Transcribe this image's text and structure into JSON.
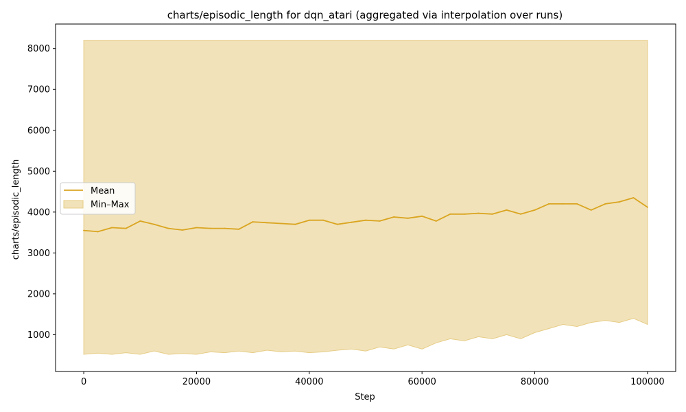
{
  "chart_data": {
    "type": "area",
    "title": "charts/episodic_length for dqn_atari (aggregated via interpolation over runs)",
    "xlabel": "Step",
    "ylabel": "charts/episodic_length",
    "xlim": [
      -5000,
      105000
    ],
    "ylim": [
      100,
      8600
    ],
    "xticks": [
      0,
      20000,
      40000,
      60000,
      80000,
      100000
    ],
    "yticks": [
      1000,
      2000,
      3000,
      4000,
      5000,
      6000,
      7000,
      8000
    ],
    "grid": false,
    "legend_position": "center-left",
    "colors": {
      "mean": "#DAA520",
      "band": "#F1E2B9",
      "band_edge": "#E6CC85"
    },
    "series": [
      {
        "name": "Mean",
        "kind": "line",
        "x": [
          0,
          2500,
          5000,
          7500,
          10000,
          12500,
          15000,
          17500,
          20000,
          22500,
          25000,
          27500,
          30000,
          32500,
          35000,
          37500,
          40000,
          42500,
          45000,
          47500,
          50000,
          52500,
          55000,
          57500,
          60000,
          62500,
          65000,
          67500,
          70000,
          72500,
          75000,
          77500,
          80000,
          82500,
          85000,
          87500,
          90000,
          92500,
          95000,
          97500,
          100000
        ],
        "y": [
          3550,
          3520,
          3620,
          3600,
          3780,
          3700,
          3600,
          3560,
          3620,
          3600,
          3600,
          3580,
          3760,
          3740,
          3720,
          3700,
          3800,
          3800,
          3700,
          3750,
          3800,
          3780,
          3880,
          3850,
          3900,
          3780,
          3950,
          3950,
          3970,
          3950,
          4050,
          3950,
          4050,
          4200,
          4200,
          4200,
          4050,
          4200,
          4250,
          4350,
          4120
        ]
      },
      {
        "name": "Min–Max",
        "kind": "band",
        "x": [
          0,
          2500,
          5000,
          7500,
          10000,
          12500,
          15000,
          17500,
          20000,
          22500,
          25000,
          27500,
          30000,
          32500,
          35000,
          37500,
          40000,
          42500,
          45000,
          47500,
          50000,
          52500,
          55000,
          57500,
          60000,
          62500,
          65000,
          67500,
          70000,
          72500,
          75000,
          77500,
          80000,
          82500,
          85000,
          87500,
          90000,
          92500,
          95000,
          97500,
          100000
        ],
        "upper": [
          8200,
          8200,
          8200,
          8200,
          8200,
          8200,
          8200,
          8200,
          8200,
          8200,
          8200,
          8200,
          8200,
          8200,
          8200,
          8200,
          8200,
          8200,
          8200,
          8200,
          8200,
          8200,
          8200,
          8200,
          8200,
          8200,
          8200,
          8200,
          8200,
          8200,
          8200,
          8200,
          8200,
          8200,
          8200,
          8200,
          8200,
          8200,
          8200,
          8200,
          8200
        ],
        "lower": [
          520,
          550,
          520,
          560,
          520,
          600,
          520,
          540,
          520,
          580,
          560,
          600,
          560,
          620,
          580,
          600,
          560,
          580,
          620,
          650,
          600,
          700,
          650,
          750,
          650,
          800,
          900,
          850,
          950,
          900,
          1000,
          900,
          1050,
          1150,
          1250,
          1200,
          1300,
          1350,
          1300,
          1400,
          1250
        ]
      }
    ]
  }
}
